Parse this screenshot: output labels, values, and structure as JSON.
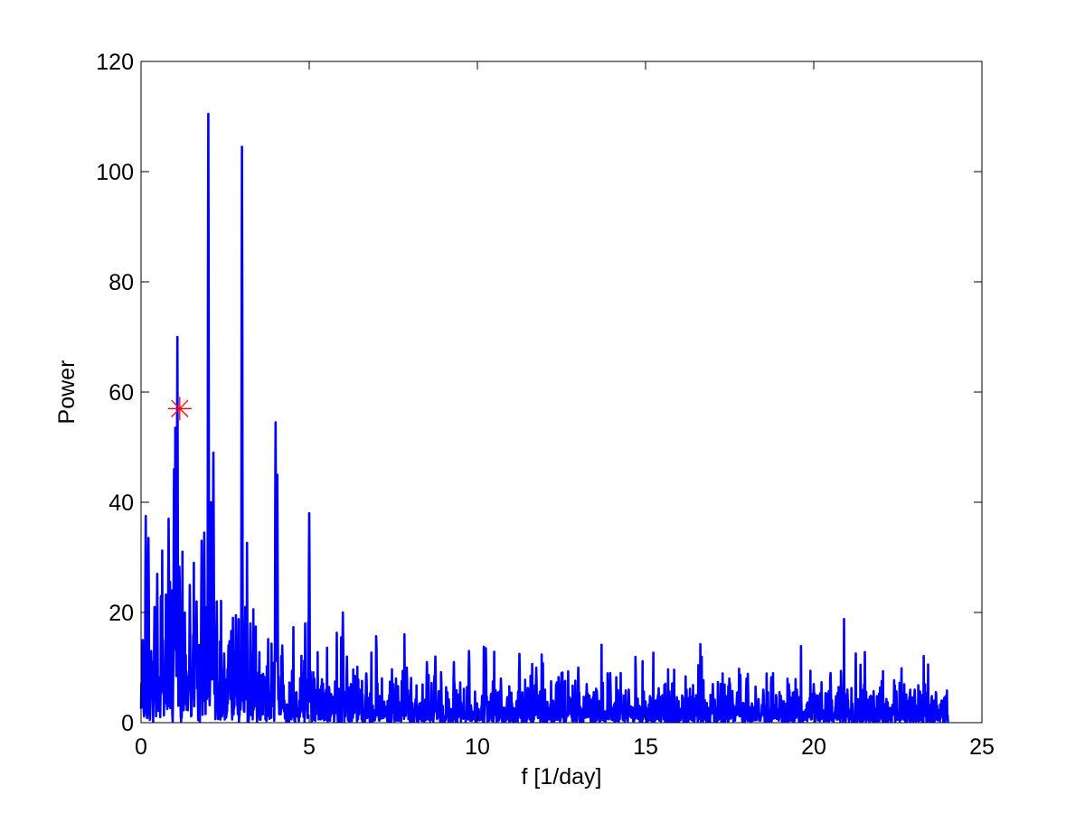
{
  "chart_data": {
    "type": "line",
    "title": "",
    "xlabel": "f [1/day]",
    "ylabel": "Power",
    "xlim": [
      0,
      25
    ],
    "ylim": [
      0,
      120
    ],
    "xticks": [
      0,
      5,
      10,
      15,
      20,
      25
    ],
    "yticks": [
      0,
      20,
      40,
      60,
      80,
      100,
      120
    ],
    "grid": false,
    "series": [
      {
        "color": "#0000ff",
        "x_range": [
          0,
          24
        ],
        "noise_floor": 3,
        "peaks": [
          {
            "x": 0.05,
            "y": 15
          },
          {
            "x": 0.14,
            "y": 37.5
          },
          {
            "x": 0.22,
            "y": 33.5
          },
          {
            "x": 0.3,
            "y": 13
          },
          {
            "x": 0.4,
            "y": 21
          },
          {
            "x": 0.48,
            "y": 27
          },
          {
            "x": 0.6,
            "y": 23
          },
          {
            "x": 0.72,
            "y": 15
          },
          {
            "x": 0.82,
            "y": 37
          },
          {
            "x": 0.9,
            "y": 24
          },
          {
            "x": 0.98,
            "y": 46
          },
          {
            "x": 1.02,
            "y": 53.5
          },
          {
            "x": 1.08,
            "y": 70
          },
          {
            "x": 1.15,
            "y": 25
          },
          {
            "x": 1.3,
            "y": 20
          },
          {
            "x": 1.45,
            "y": 25
          },
          {
            "x": 1.55,
            "y": 16
          },
          {
            "x": 1.65,
            "y": 22
          },
          {
            "x": 1.8,
            "y": 33
          },
          {
            "x": 1.88,
            "y": 34.5
          },
          {
            "x": 2.0,
            "y": 110.5
          },
          {
            "x": 2.08,
            "y": 40
          },
          {
            "x": 2.15,
            "y": 49
          },
          {
            "x": 2.25,
            "y": 22
          },
          {
            "x": 2.45,
            "y": 9
          },
          {
            "x": 2.6,
            "y": 14
          },
          {
            "x": 2.82,
            "y": 19.5
          },
          {
            "x": 3.0,
            "y": 104.5
          },
          {
            "x": 3.1,
            "y": 21
          },
          {
            "x": 3.25,
            "y": 18
          },
          {
            "x": 3.4,
            "y": 12
          },
          {
            "x": 3.6,
            "y": 6
          },
          {
            "x": 3.78,
            "y": 11
          },
          {
            "x": 4.0,
            "y": 54.5
          },
          {
            "x": 4.05,
            "y": 45
          },
          {
            "x": 4.2,
            "y": 14
          },
          {
            "x": 4.5,
            "y": 8
          },
          {
            "x": 4.8,
            "y": 9
          },
          {
            "x": 5.0,
            "y": 38
          },
          {
            "x": 5.15,
            "y": 8
          },
          {
            "x": 5.5,
            "y": 6
          },
          {
            "x": 5.8,
            "y": 7
          },
          {
            "x": 6.0,
            "y": 20
          },
          {
            "x": 6.12,
            "y": 12
          },
          {
            "x": 6.5,
            "y": 6
          },
          {
            "x": 7.0,
            "y": 11
          },
          {
            "x": 7.5,
            "y": 7
          },
          {
            "x": 7.9,
            "y": 10
          },
          {
            "x": 8.5,
            "y": 11
          },
          {
            "x": 8.75,
            "y": 12
          },
          {
            "x": 9.3,
            "y": 11
          },
          {
            "x": 9.75,
            "y": 13
          },
          {
            "x": 10.25,
            "y": 13.5
          },
          {
            "x": 10.7,
            "y": 8
          },
          {
            "x": 11.25,
            "y": 12.5
          },
          {
            "x": 11.75,
            "y": 10
          },
          {
            "x": 12.5,
            "y": 9
          },
          {
            "x": 13.0,
            "y": 10
          },
          {
            "x": 13.25,
            "y": 7
          },
          {
            "x": 13.95,
            "y": 9
          },
          {
            "x": 14.5,
            "y": 6
          },
          {
            "x": 15.5,
            "y": 5
          },
          {
            "x": 16.5,
            "y": 5
          },
          {
            "x": 17.0,
            "y": 7
          },
          {
            "x": 17.5,
            "y": 7
          },
          {
            "x": 18.0,
            "y": 8
          },
          {
            "x": 18.5,
            "y": 6
          },
          {
            "x": 19.5,
            "y": 6
          },
          {
            "x": 20.0,
            "y": 7
          },
          {
            "x": 20.5,
            "y": 9
          },
          {
            "x": 21.0,
            "y": 6
          },
          {
            "x": 21.5,
            "y": 7
          },
          {
            "x": 22.0,
            "y": 6
          },
          {
            "x": 23.0,
            "y": 6
          },
          {
            "x": 23.3,
            "y": 5
          },
          {
            "x": 23.8,
            "y": 4
          }
        ]
      }
    ],
    "marker": {
      "x": 1.15,
      "y": 57,
      "symbol": "asterisk",
      "color": "#ff0000"
    }
  }
}
